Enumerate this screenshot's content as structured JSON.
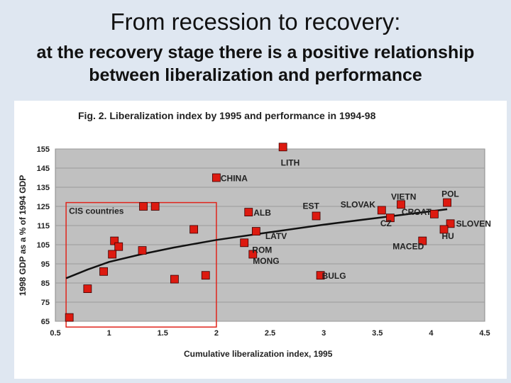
{
  "slide": {
    "title": "From recession to recovery:",
    "subtitle_line1": "at the recovery stage there is a positive relationship",
    "subtitle_line2": "between liberalization and performance"
  },
  "chart_data": {
    "type": "scatter",
    "title": "Fig. 2. Liberalization index by 1995 and performance in 1994-98",
    "xlabel": "Cumulative liberalization index, 1995",
    "ylabel": "1998 GDP as a % of 1994 GDP",
    "xlim": [
      0.5,
      4.5
    ],
    "ylim": [
      65,
      155
    ],
    "xticks": [
      "0.5",
      "1",
      "1.5",
      "2",
      "2.5",
      "3",
      "3.5",
      "4",
      "4.5"
    ],
    "yticks": [
      "65",
      "75",
      "85",
      "95",
      "105",
      "115",
      "125",
      "135",
      "145",
      "155"
    ],
    "points": [
      {
        "x": 2.62,
        "y": 156,
        "label": "LITH"
      },
      {
        "x": 2.0,
        "y": 140,
        "label": "CHINA"
      },
      {
        "x": 2.3,
        "y": 122,
        "label": "ALB"
      },
      {
        "x": 2.93,
        "y": 120,
        "label": "EST"
      },
      {
        "x": 3.54,
        "y": 123,
        "label": "SLOVAK"
      },
      {
        "x": 3.72,
        "y": 126,
        "label": "VIETN"
      },
      {
        "x": 4.15,
        "y": 127,
        "label": "POL"
      },
      {
        "x": 3.62,
        "y": 119,
        "label": "CZ"
      },
      {
        "x": 4.03,
        "y": 121,
        "label": "CROAT"
      },
      {
        "x": 4.18,
        "y": 116,
        "label": "SLOVEN"
      },
      {
        "x": 4.12,
        "y": 113,
        "label": ""
      },
      {
        "x": 3.92,
        "y": 107,
        "label": "MACED"
      },
      {
        "x": 2.37,
        "y": 112,
        "label": "LATV"
      },
      {
        "x": 2.26,
        "y": 106,
        "label": ""
      },
      {
        "x": 2.34,
        "y": 100,
        "label": "ROM"
      },
      {
        "x": 2.97,
        "y": 89,
        "label": "BULG"
      },
      {
        "x": 1.79,
        "y": 113,
        "label": ""
      },
      {
        "x": 1.32,
        "y": 125,
        "label": ""
      },
      {
        "x": 1.43,
        "y": 125,
        "label": ""
      },
      {
        "x": 1.05,
        "y": 107,
        "label": ""
      },
      {
        "x": 1.09,
        "y": 104,
        "label": ""
      },
      {
        "x": 1.03,
        "y": 100,
        "label": ""
      },
      {
        "x": 1.31,
        "y": 102,
        "label": ""
      },
      {
        "x": 0.95,
        "y": 91,
        "label": ""
      },
      {
        "x": 0.8,
        "y": 82,
        "label": ""
      },
      {
        "x": 0.63,
        "y": 67,
        "label": ""
      },
      {
        "x": 1.61,
        "y": 87,
        "label": ""
      },
      {
        "x": 1.9,
        "y": 89,
        "label": ""
      }
    ],
    "extra_labels": [
      {
        "text": "MONG",
        "x": 2.34,
        "y": 95
      },
      {
        "text": "HU",
        "x": 4.1,
        "y": 108
      }
    ],
    "group_box": {
      "label": "CIS countries",
      "x0": 0.6,
      "x1": 2.0,
      "y0": 62,
      "y1": 127
    },
    "trend": [
      {
        "x": 0.6,
        "y": 87.5
      },
      {
        "x": 0.8,
        "y": 92
      },
      {
        "x": 1.0,
        "y": 96
      },
      {
        "x": 1.3,
        "y": 100
      },
      {
        "x": 1.6,
        "y": 103.5
      },
      {
        "x": 2.0,
        "y": 107.5
      },
      {
        "x": 2.5,
        "y": 111.5
      },
      {
        "x": 3.0,
        "y": 115.5
      },
      {
        "x": 3.5,
        "y": 119
      },
      {
        "x": 4.15,
        "y": 123.5
      }
    ],
    "colors": {
      "marker": "#dd1a10",
      "plot_bg": "#c0c0c0",
      "box": "#e0241b",
      "trend": "#111111"
    }
  }
}
